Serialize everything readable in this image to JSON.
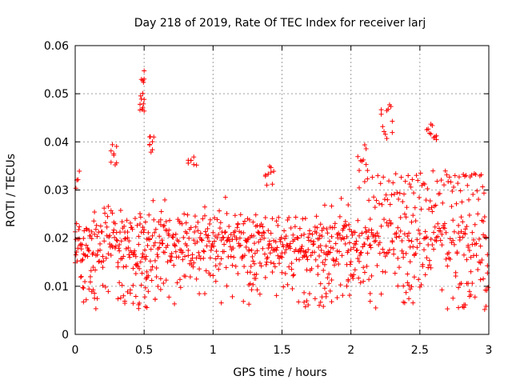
{
  "chart_data": {
    "type": "scatter",
    "title": "Day 218 of 2019, Rate Of TEC Index for receiver larj",
    "xlabel": "GPS time / hours",
    "ylabel": "ROTI / TECUs",
    "xlim": [
      0,
      3
    ],
    "ylim": [
      0,
      0.06
    ],
    "x_ticks": [
      0,
      0.5,
      1,
      1.5,
      2,
      2.5,
      3
    ],
    "x_tick_labels": [
      "0",
      "0.5",
      "1",
      "1.5",
      "2",
      "2.5",
      "3"
    ],
    "y_ticks": [
      0,
      0.01,
      0.02,
      0.03,
      0.04,
      0.05,
      0.06
    ],
    "y_tick_labels": [
      "0",
      "0.01",
      "0.02",
      "0.03",
      "0.04",
      "0.05",
      "0.06"
    ],
    "grid": true,
    "marker": "+",
    "marker_color": "#ff0000",
    "series": [
      {
        "name": "ROTI",
        "x": [
          0.0,
          0.005,
          0.01,
          0.02,
          0.03,
          0.04,
          0.05,
          0.06,
          0.07,
          0.08,
          0.09,
          0.1,
          0.11,
          0.12,
          0.13,
          0.14,
          0.15,
          0.16,
          0.17,
          0.18,
          0.19,
          0.2,
          0.21,
          0.22,
          0.23,
          0.24,
          0.25,
          0.26,
          0.27,
          0.28,
          0.29,
          0.3,
          0.31,
          0.32,
          0.33,
          0.34,
          0.35,
          0.36,
          0.37,
          0.38,
          0.39,
          0.4,
          0.41,
          0.42,
          0.43,
          0.44,
          0.45,
          0.46,
          0.47,
          0.475,
          0.48,
          0.485,
          0.49,
          0.5,
          0.51,
          0.52,
          0.53,
          0.54,
          0.55,
          0.56,
          0.57,
          0.58,
          0.59,
          0.6,
          0.61,
          0.62,
          0.63,
          0.64,
          0.65,
          0.66,
          0.67,
          0.68,
          0.69,
          0.7,
          0.71,
          0.72,
          0.73,
          0.74,
          0.75,
          0.76,
          0.77,
          0.78,
          0.79,
          0.8,
          0.81,
          0.82,
          0.83,
          0.84,
          0.85,
          0.86,
          0.87,
          0.88,
          0.89,
          0.9,
          0.91,
          0.92,
          0.93,
          0.94,
          0.95,
          0.96,
          0.97,
          0.98,
          0.99,
          1.0,
          1.01,
          1.02,
          1.03,
          1.04,
          1.05,
          1.06,
          1.07,
          1.08,
          1.09,
          1.1,
          1.11,
          1.12,
          1.13,
          1.14,
          1.15,
          1.16,
          1.17,
          1.18,
          1.19,
          1.2,
          1.21,
          1.22,
          1.23,
          1.24,
          1.25,
          1.26,
          1.27,
          1.28,
          1.29,
          1.3,
          1.31,
          1.32,
          1.33,
          1.34,
          1.35,
          1.36,
          1.37,
          1.38,
          1.39,
          1.4,
          1.41,
          1.42,
          1.43,
          1.44,
          1.45,
          1.46,
          1.47,
          1.48,
          1.49,
          1.5,
          1.51,
          1.52,
          1.53,
          1.54,
          1.55,
          1.56,
          1.57,
          1.58,
          1.59,
          1.6,
          1.61,
          1.62,
          1.63,
          1.64,
          1.65,
          1.66,
          1.67,
          1.68,
          1.69,
          1.7,
          1.71,
          1.72,
          1.73,
          1.74,
          1.75,
          1.76,
          1.77,
          1.78,
          1.79,
          1.8,
          1.81,
          1.82,
          1.83,
          1.84,
          1.85,
          1.86,
          1.87,
          1.88,
          1.89,
          1.9,
          1.91,
          1.92,
          1.93,
          1.94,
          1.95,
          1.96,
          1.97,
          1.98,
          1.99,
          2.0,
          2.01,
          2.02,
          2.03,
          2.04,
          2.05,
          2.06,
          2.07,
          2.08,
          2.09,
          2.1,
          2.11,
          2.12,
          2.13,
          2.14,
          2.15,
          2.16,
          2.17,
          2.18,
          2.19,
          2.2,
          2.21,
          2.22,
          2.23,
          2.24,
          2.25,
          2.26,
          2.27,
          2.28,
          2.29,
          2.3,
          2.31,
          2.32,
          2.33,
          2.34,
          2.35,
          2.36,
          2.37,
          2.38,
          2.39,
          2.4,
          2.41,
          2.42,
          2.43,
          2.44,
          2.45,
          2.46,
          2.47,
          2.48,
          2.49,
          2.5,
          2.51,
          2.52,
          2.53,
          2.54,
          2.55,
          2.56,
          2.57,
          2.58,
          2.59,
          2.6,
          2.61,
          2.62,
          2.63,
          2.64,
          2.65,
          2.66,
          2.67,
          2.68,
          2.69,
          2.7,
          2.71,
          2.72,
          2.73,
          2.74,
          2.75,
          2.76,
          2.77,
          2.78,
          2.79,
          2.8,
          2.81,
          2.82,
          2.83,
          2.84,
          2.85,
          2.86,
          2.87,
          2.88,
          2.89,
          2.9,
          2.91,
          2.92,
          2.93,
          2.94,
          2.95,
          2.96,
          2.97,
          2.98,
          2.99,
          0.0,
          0.01,
          0.02,
          0.03,
          0.04,
          0.05,
          0.06,
          0.07,
          0.08,
          0.09,
          0.1,
          0.11,
          0.12,
          0.13,
          0.14,
          0.15,
          0.16,
          0.17,
          0.18,
          0.19,
          0.2,
          0.21,
          0.22,
          0.23,
          0.24,
          0.25,
          0.26,
          0.27,
          0.28,
          0.29,
          0.3,
          0.31,
          0.32,
          0.33,
          0.34,
          0.35,
          0.36,
          0.37,
          0.38,
          0.39,
          0.4,
          0.41,
          0.42,
          0.43,
          0.44,
          0.45,
          0.46,
          0.47,
          0.48,
          0.49,
          0.5,
          0.51,
          0.52,
          0.53,
          0.54,
          0.55,
          0.56,
          0.57,
          0.58,
          0.59,
          0.6,
          0.61,
          0.62,
          0.63,
          0.64,
          0.65,
          0.66,
          0.67,
          0.68,
          0.69,
          0.7,
          0.71,
          0.72,
          0.73,
          0.74,
          0.75,
          0.76,
          0.77,
          0.78,
          0.79,
          0.8,
          0.81,
          0.82,
          0.83,
          0.84,
          0.85,
          0.86,
          0.87,
          0.88,
          0.89,
          0.9,
          0.91,
          0.92,
          0.93,
          0.94,
          0.95,
          0.96,
          0.97,
          0.98,
          0.99,
          1.0,
          1.01,
          1.02,
          1.03,
          1.04,
          1.05,
          1.06,
          1.07,
          1.08,
          1.09,
          1.1,
          1.11,
          1.12,
          1.13,
          1.14,
          1.15,
          1.16,
          1.17,
          1.18,
          1.19,
          1.2,
          1.21,
          1.22,
          1.23,
          1.24,
          1.25,
          1.26,
          1.27,
          1.28,
          1.29,
          1.3,
          1.31,
          1.32,
          1.33,
          1.34,
          1.35,
          1.36,
          1.37,
          1.38,
          1.39,
          1.4,
          1.41,
          1.42,
          1.43,
          1.44,
          1.45,
          1.46,
          1.47,
          1.48,
          1.49,
          1.5,
          1.51,
          1.52,
          1.53,
          1.54,
          1.55,
          1.56,
          1.57,
          1.58,
          1.59,
          1.6,
          1.61,
          1.62,
          1.63,
          1.64,
          1.65,
          1.66,
          1.67,
          1.68,
          1.69,
          1.7,
          1.71,
          1.72,
          1.73,
          1.74,
          1.75,
          1.76,
          1.77,
          1.78,
          1.79,
          1.8,
          1.81,
          1.82,
          1.83,
          1.84,
          1.85,
          1.86,
          1.87,
          1.88,
          1.89,
          1.9,
          1.91,
          1.92,
          1.93,
          1.94,
          1.95,
          1.96,
          1.97,
          1.98,
          1.99,
          2.0,
          2.01,
          2.02,
          2.03,
          2.04,
          2.05,
          2.06,
          2.07,
          2.08,
          2.09,
          2.1,
          2.11,
          2.12,
          2.13,
          2.14,
          2.15,
          2.16,
          2.17,
          2.18,
          2.19,
          2.2,
          2.21,
          2.22,
          2.23,
          2.24,
          2.25,
          2.26,
          2.27,
          2.28,
          2.29,
          2.3,
          2.31,
          2.32,
          2.33,
          2.34,
          2.35,
          2.36,
          2.37,
          2.38,
          2.39,
          2.4,
          2.41,
          2.42,
          2.43,
          2.44,
          2.45,
          2.46,
          2.47,
          2.48,
          2.49,
          2.5,
          2.51,
          2.52,
          2.53,
          2.54,
          2.55,
          2.56,
          2.57,
          2.58,
          2.59,
          2.6,
          2.61,
          2.62,
          2.63,
          2.64,
          2.65,
          2.66,
          2.67,
          2.68,
          2.69,
          2.7,
          2.71,
          2.72,
          2.73,
          2.74,
          2.75,
          2.76,
          2.77,
          2.78,
          2.79,
          2.8,
          2.81,
          2.82,
          2.83,
          2.84,
          2.85,
          2.86,
          2.87,
          2.88,
          2.89,
          2.9,
          2.91,
          2.92,
          2.93,
          2.94,
          2.95,
          2.96,
          2.97,
          2.98,
          2.99,
          0.005,
          0.015,
          0.025,
          0.035,
          0.045,
          0.055,
          0.065,
          0.075,
          0.085,
          0.095,
          0.105,
          0.115,
          0.125,
          0.135,
          0.145,
          0.155,
          0.165,
          0.175,
          0.185,
          0.195,
          0.205,
          0.215,
          0.225,
          0.235,
          0.245,
          0.255,
          0.265,
          0.275,
          0.285,
          0.295,
          0.305,
          0.315,
          0.325,
          0.335,
          0.345,
          0.355,
          0.365,
          0.375,
          0.385,
          0.395,
          0.405,
          0.415,
          0.425,
          0.435,
          0.445,
          0.455,
          0.465,
          0.475,
          0.485,
          0.495,
          0.505,
          0.515,
          0.525,
          0.535,
          0.545,
          0.555,
          0.565,
          0.575,
          0.585,
          0.595,
          0.605,
          0.615,
          0.625,
          0.635,
          0.645,
          0.655,
          0.665,
          0.675,
          0.685,
          0.695,
          0.705,
          0.715,
          0.725,
          0.735,
          0.745,
          0.755,
          0.765,
          0.775,
          0.785,
          0.795,
          0.805,
          0.815,
          0.825,
          0.835,
          0.845,
          0.855,
          0.865,
          0.875,
          0.885,
          0.895,
          0.905,
          0.915,
          0.925,
          0.935,
          0.945,
          0.955,
          0.965,
          0.975,
          0.985,
          0.995,
          1.005,
          1.015,
          1.025,
          1.035,
          1.045,
          1.055,
          1.065,
          1.075,
          1.085,
          1.095,
          1.105,
          1.115,
          1.125,
          1.135,
          1.145,
          1.155,
          1.165,
          1.175,
          1.185,
          1.195,
          1.205,
          1.215,
          1.225,
          1.235,
          1.245,
          1.255,
          1.265,
          1.275,
          1.285,
          1.295,
          1.305,
          1.315,
          1.325,
          1.335,
          1.345,
          1.355,
          1.365,
          1.375,
          1.385,
          1.395,
          1.405,
          1.415,
          1.425,
          1.435,
          1.445,
          1.455,
          1.465,
          1.475,
          1.485,
          1.495,
          1.505,
          1.515,
          1.525,
          1.535,
          1.545,
          1.555,
          1.565,
          1.575,
          1.585,
          1.595,
          1.605,
          1.615,
          1.625,
          1.635,
          1.645,
          1.655,
          1.665,
          1.675,
          1.685,
          1.695,
          1.705,
          1.715,
          1.725,
          1.735,
          1.745,
          1.755,
          1.765,
          1.775,
          1.785,
          1.795,
          1.805,
          1.815,
          1.825,
          1.835,
          1.845,
          1.855,
          1.865,
          1.875,
          1.885,
          1.895,
          1.905,
          1.915,
          1.925,
          1.935,
          1.945,
          1.955,
          1.965,
          1.975,
          1.985,
          1.995,
          2.005,
          2.015,
          2.025,
          2.035,
          2.045,
          2.055,
          2.065,
          2.075,
          2.085,
          2.095,
          2.105,
          2.115,
          2.125,
          2.135,
          2.145,
          2.155,
          2.165,
          2.175,
          2.185,
          2.195,
          2.205,
          2.215,
          2.225,
          2.235,
          2.245,
          2.255,
          2.265,
          2.275,
          2.285,
          2.295,
          2.305,
          2.315,
          2.325,
          2.335,
          2.345,
          2.355,
          2.365,
          2.375,
          2.385,
          2.395,
          2.405,
          2.415,
          2.425,
          2.435,
          2.445,
          2.455,
          2.465,
          2.475,
          2.485,
          2.495,
          2.505,
          2.515,
          2.525,
          2.535,
          2.545,
          2.555,
          2.565,
          2.575,
          2.585,
          2.595,
          2.605,
          2.615,
          2.625,
          2.635,
          2.645,
          2.655,
          2.665,
          2.675,
          2.685,
          2.695,
          2.705,
          2.715,
          2.725,
          2.735,
          2.745,
          2.755,
          2.765,
          2.775,
          2.785,
          2.795,
          2.805,
          2.815,
          2.825,
          2.835,
          2.845,
          2.855,
          2.865,
          2.875,
          2.885,
          2.895,
          2.905,
          2.915,
          2.925,
          2.935,
          2.945,
          2.955,
          2.965,
          2.975,
          2.985,
          2.995,
          0.02,
          0.04,
          0.06,
          0.08,
          0.1,
          0.14,
          0.2,
          0.24,
          0.26,
          0.28,
          0.3,
          0.36,
          0.4,
          0.42,
          0.44,
          0.46,
          0.5,
          0.52,
          0.54,
          0.58,
          0.62,
          0.64,
          0.66,
          0.68,
          0.72,
          0.76,
          0.8,
          0.82,
          0.84,
          0.86,
          0.9,
          0.94,
          0.98,
          1.02,
          1.06,
          1.1,
          1.14,
          1.18,
          1.22,
          1.26,
          1.3,
          1.34,
          1.38,
          1.42,
          1.46,
          1.5,
          1.54,
          1.58,
          1.62,
          1.66,
          1.7,
          1.74,
          1.78,
          1.82,
          1.86,
          1.9,
          1.94,
          1.98,
          2.02,
          2.06,
          2.1,
          2.14,
          2.18,
          2.22,
          2.26,
          2.3,
          2.34,
          2.38,
          2.42,
          2.46,
          2.5,
          2.54,
          2.58,
          2.62,
          2.66,
          2.7,
          2.74,
          2.78,
          2.82,
          2.86,
          2.9,
          2.94,
          0.005,
          0.012,
          0.03,
          0.045,
          0.47,
          0.475,
          0.48,
          0.485,
          0.49,
          0.495,
          0.5,
          0.505,
          0.51,
          0.515,
          0.52,
          0.53,
          0.055,
          0.06,
          0.46,
          0.465,
          0.47,
          0.48,
          0.49,
          0.5,
          0.54,
          0.56,
          0.58,
          0.6,
          0.62,
          0.82,
          0.84,
          0.86,
          0.88,
          0.36,
          0.38,
          0.4,
          0.42,
          0.44,
          0.26,
          0.27,
          0.28,
          0.29,
          0.3,
          0.11,
          0.12,
          0.13,
          0.14,
          0.15,
          0.16,
          0.51,
          0.52,
          0.53,
          2.22,
          2.23,
          2.24,
          2.25,
          2.26,
          2.27,
          2.28,
          2.29,
          2.3,
          2.55,
          2.56,
          2.57,
          2.58,
          2.59,
          2.6,
          2.61,
          2.62,
          2.05,
          2.06,
          2.07,
          2.08,
          2.09,
          2.1,
          2.11,
          2.12,
          1.38,
          1.39,
          1.4,
          1.41,
          1.42,
          1.43,
          1.44,
          1.8,
          1.81,
          1.82,
          1.83,
          1.84,
          1.85,
          1.86,
          2.38,
          2.39,
          2.4,
          2.41,
          2.42,
          2.43,
          2.44,
          2.45,
          2.82,
          2.83,
          2.84,
          2.85,
          2.86,
          2.87,
          2.88,
          2.96,
          2.97,
          2.98,
          2.99,
          0.54,
          0.545,
          0.55,
          0.56,
          0.57,
          0.31,
          0.32,
          0.33,
          0.34,
          0.35,
          0.49,
          0.495,
          0.5,
          1.28,
          1.29,
          1.3,
          1.31,
          1.32,
          1.25,
          1.26,
          1.27,
          1.66,
          1.67,
          1.68,
          1.69,
          2.11,
          2.12,
          2.13,
          2.14,
          2.15,
          2.78,
          2.79,
          2.8,
          2.81,
          1.76,
          1.77,
          1.78,
          1.79,
          1.97,
          1.98,
          1.99,
          2.0
        ]
      }
    ]
  }
}
